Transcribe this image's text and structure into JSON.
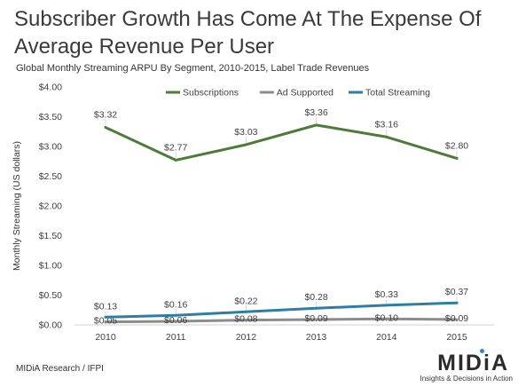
{
  "headline": "Subscriber Growth Has Come At The Expense Of Average Revenue Per User",
  "source": "MIDiA Research / IFPI",
  "logo": {
    "word_a": "MID",
    "word_i": "i",
    "word_b": "A",
    "tagline": "Insights & Decisions in Action",
    "dot_color": "#1f8fc7"
  },
  "chart_data": {
    "type": "line",
    "title": "Global Monthly Streaming ARPU By Segment, 2010-2015,  Label Trade Revenues",
    "ylabel": "Monthly Streaming (US dollars)",
    "xlabel": "",
    "categories": [
      "2010",
      "2011",
      "2012",
      "2013",
      "2014",
      "2015"
    ],
    "ylim": [
      0,
      4
    ],
    "yticks": [
      0,
      0.5,
      1,
      1.5,
      2,
      2.5,
      3,
      3.5,
      4
    ],
    "ytick_labels": [
      "$0.00",
      "$0.50",
      "$1.00",
      "$1.50",
      "$2.00",
      "$2.50",
      "$3.00",
      "$3.50",
      "$4.00"
    ],
    "grid": false,
    "legend_position": "top",
    "series": [
      {
        "name": "Subscriptions",
        "color": "#4f7a3a",
        "values": [
          3.32,
          2.77,
          3.03,
          3.36,
          3.16,
          2.8
        ],
        "labels": [
          "$3.32",
          "$2.77",
          "$3.03",
          "$3.36",
          "$3.16",
          "$2.80"
        ]
      },
      {
        "name": "Ad Supported",
        "color": "#8c8c8c",
        "values": [
          0.05,
          0.06,
          0.08,
          0.09,
          0.1,
          0.09
        ],
        "labels": [
          "$0.05",
          "$0.06",
          "$0.08",
          "$0.09",
          "$0.10",
          "$0.09"
        ]
      },
      {
        "name": "Total Streaming",
        "color": "#2e7ea3",
        "values": [
          0.13,
          0.16,
          0.22,
          0.28,
          0.33,
          0.37
        ],
        "labels": [
          "$0.13",
          "$0.16",
          "$0.22",
          "$0.28",
          "$0.33",
          "$0.37"
        ]
      }
    ]
  }
}
